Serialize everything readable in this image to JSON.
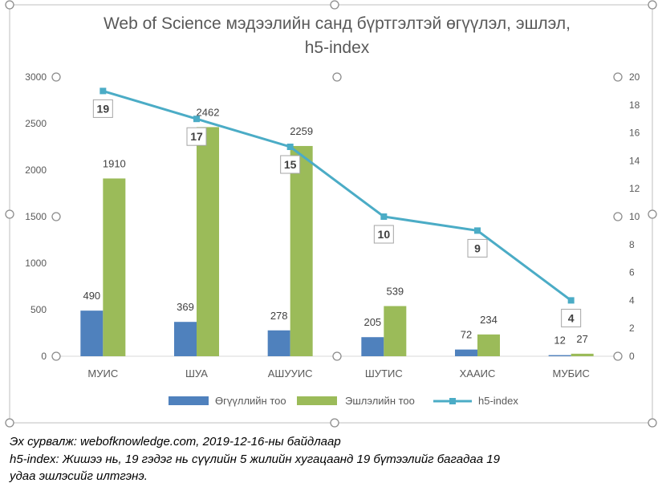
{
  "chart_data": {
    "type": "bar",
    "title": "Web of Science мэдээлийн санд бүртгэлтэй өгүүлэл, эшлэл, h5-index",
    "title_lines": [
      "Web of Science мэдээлийн санд бүртгэлтэй өгүүлэл, эшлэл,",
      "h5-index"
    ],
    "categories": [
      "МУИС",
      "ШУА",
      "АШУУИС",
      "ШУТИС",
      "ХААИС",
      "МУБИС"
    ],
    "series": [
      {
        "name": "Өгүүллийн тоо",
        "type": "bar",
        "axis": "left",
        "color": "#4F81BD",
        "values": [
          490,
          369,
          278,
          205,
          72,
          12
        ]
      },
      {
        "name": "Эшлэлийн тоо",
        "type": "bar",
        "axis": "left",
        "color": "#9BBB59",
        "values": [
          1910,
          2462,
          2259,
          539,
          234,
          27
        ]
      },
      {
        "name": "h5-index",
        "type": "line",
        "axis": "right",
        "color": "#4BACC6",
        "values": [
          19,
          17,
          15,
          10,
          9,
          4
        ]
      }
    ],
    "y_left": {
      "min": 0,
      "max": 3000,
      "ticks": [
        0,
        500,
        1000,
        1500,
        2000,
        2500,
        3000
      ]
    },
    "y_right": {
      "min": 0,
      "max": 20,
      "ticks": [
        0,
        2,
        4,
        6,
        8,
        10,
        12,
        14,
        16,
        18,
        20
      ]
    },
    "legend_position": "bottom",
    "grid": false
  },
  "source": {
    "line1": "Эх сурвалж: webofknowledge.com, 2019-12-16-ны байдлаар",
    "line2": "h5-index: Жишээ нь, 19 гэдэг нь сүүлийн 5 жилийн хугацаанд 19 бүтээлийг багадаа 19",
    "line3": "удаа эшлэсийг илтгэнэ."
  }
}
